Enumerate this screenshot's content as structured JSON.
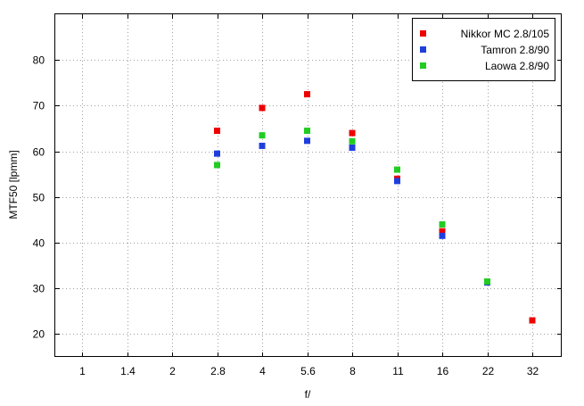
{
  "chart_data": {
    "type": "scatter",
    "title": "",
    "xlabel": "f/",
    "ylabel": "MTF50 [lpmm]",
    "x_categories": [
      "1",
      "1.4",
      "2",
      "2.8",
      "4",
      "5.6",
      "8",
      "11",
      "16",
      "22",
      "32"
    ],
    "ylim": [
      15,
      90
    ],
    "yticks": [
      20,
      30,
      40,
      50,
      60,
      70,
      80
    ],
    "grid": true,
    "legend_position": "top-right",
    "series": [
      {
        "name": "Nikkor MC 2.8/105",
        "color": "#ee0000",
        "points": [
          {
            "x": "2.8",
            "y": 64.5
          },
          {
            "x": "4",
            "y": 69.5
          },
          {
            "x": "5.6",
            "y": 72.5
          },
          {
            "x": "8",
            "y": 64
          },
          {
            "x": "11",
            "y": 54
          },
          {
            "x": "16",
            "y": 42.5
          },
          {
            "x": "22",
            "y": 31.5
          },
          {
            "x": "32",
            "y": 23
          }
        ]
      },
      {
        "name": "Tamron 2.8/90",
        "color": "#1f3fdd",
        "points": [
          {
            "x": "2.8",
            "y": 59.5
          },
          {
            "x": "4",
            "y": 61.2
          },
          {
            "x": "5.6",
            "y": 62.3
          },
          {
            "x": "8",
            "y": 60.8
          },
          {
            "x": "11",
            "y": 53.5
          },
          {
            "x": "16",
            "y": 41.5
          },
          {
            "x": "22",
            "y": 31.3
          }
        ]
      },
      {
        "name": "Laowa 2.8/90",
        "color": "#22cc22",
        "points": [
          {
            "x": "2.8",
            "y": 57
          },
          {
            "x": "4",
            "y": 63.5
          },
          {
            "x": "5.6",
            "y": 64.5
          },
          {
            "x": "8",
            "y": 62.2
          },
          {
            "x": "11",
            "y": 56
          },
          {
            "x": "16",
            "y": 44
          },
          {
            "x": "22",
            "y": 31.5
          }
        ]
      }
    ]
  }
}
